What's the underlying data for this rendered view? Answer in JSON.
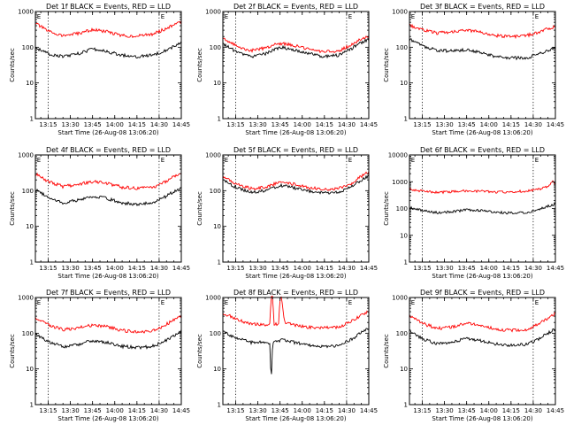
{
  "figure": {
    "start_time_label": "Start Time (26-Aug-08 13:06:20)",
    "ylabel": "Counts/sec",
    "marker_label": "E",
    "colors": {
      "events": "#000000",
      "lld": "#ff0000"
    }
  },
  "chart_data": [
    {
      "type": "line",
      "title": "Det 1f BLACK = Events, RED = LLD",
      "x_tick_labels": [
        "13:15",
        "13:30",
        "13:45",
        "14:00",
        "14:15",
        "14:30",
        "14:45"
      ],
      "x_range": [
        "13:06:20",
        "14:45"
      ],
      "y_scale": "log",
      "ylim": [
        1,
        1000
      ],
      "y_tick_labels": [
        "1",
        "10",
        "100",
        "1000"
      ],
      "vertical_lines": [
        "13:15",
        "14:30"
      ],
      "series": [
        {
          "name": "LLD",
          "color": "#ff0000",
          "x": [
            "13:06",
            "13:15",
            "13:25",
            "13:35",
            "13:45",
            "13:55",
            "14:05",
            "14:15",
            "14:25",
            "14:32",
            "14:40",
            "14:45"
          ],
          "values": [
            480,
            280,
            210,
            240,
            310,
            270,
            210,
            205,
            230,
            300,
            420,
            520
          ]
        },
        {
          "name": "Events",
          "color": "#000000",
          "x": [
            "13:06",
            "13:15",
            "13:25",
            "13:35",
            "13:45",
            "13:55",
            "14:05",
            "14:15",
            "14:25",
            "14:32",
            "14:40",
            "14:45"
          ],
          "values": [
            100,
            65,
            55,
            65,
            90,
            75,
            60,
            55,
            60,
            75,
            105,
            135
          ]
        }
      ]
    },
    {
      "type": "line",
      "title": "Det 2f BLACK = Events, RED = LLD",
      "x_tick_labels": [
        "13:15",
        "13:30",
        "13:45",
        "14:00",
        "14:15",
        "14:30",
        "14:45"
      ],
      "x_range": [
        "13:06:20",
        "14:45"
      ],
      "y_scale": "log",
      "ylim": [
        1,
        1000
      ],
      "y_tick_labels": [
        "1",
        "10",
        "100",
        "1000"
      ],
      "vertical_lines": [
        "13:15",
        "14:30"
      ],
      "series": [
        {
          "name": "LLD",
          "color": "#ff0000",
          "x": [
            "13:06",
            "13:15",
            "13:25",
            "13:35",
            "13:45",
            "13:55",
            "14:05",
            "14:15",
            "14:25",
            "14:32",
            "14:40",
            "14:45"
          ],
          "values": [
            180,
            110,
            80,
            95,
            130,
            110,
            85,
            75,
            80,
            110,
            170,
            210
          ]
        },
        {
          "name": "Events",
          "color": "#000000",
          "x": [
            "13:06",
            "13:15",
            "13:25",
            "13:35",
            "13:45",
            "13:55",
            "14:05",
            "14:15",
            "14:25",
            "14:32",
            "14:40",
            "14:45"
          ],
          "values": [
            130,
            75,
            55,
            65,
            100,
            85,
            65,
            55,
            60,
            85,
            135,
            165
          ]
        }
      ]
    },
    {
      "type": "line",
      "title": "Det 3f BLACK = Events, RED = LLD",
      "x_tick_labels": [
        "13:15",
        "13:30",
        "13:45",
        "14:00",
        "14:15",
        "14:30",
        "14:45"
      ],
      "x_range": [
        "13:06:20",
        "14:45"
      ],
      "y_scale": "log",
      "ylim": [
        1,
        1000
      ],
      "y_tick_labels": [
        "1",
        "10",
        "100",
        "1000"
      ],
      "vertical_lines": [
        "13:15",
        "14:30"
      ],
      "series": [
        {
          "name": "LLD",
          "color": "#ff0000",
          "x": [
            "13:06",
            "13:15",
            "13:25",
            "13:35",
            "13:45",
            "13:55",
            "14:05",
            "14:15",
            "14:25",
            "14:32",
            "14:40",
            "14:45"
          ],
          "values": [
            420,
            310,
            250,
            270,
            300,
            260,
            210,
            200,
            210,
            250,
            330,
            380
          ]
        },
        {
          "name": "Events",
          "color": "#000000",
          "x": [
            "13:06",
            "13:15",
            "13:25",
            "13:35",
            "13:45",
            "13:55",
            "14:05",
            "14:15",
            "14:25",
            "14:32",
            "14:40",
            "14:45"
          ],
          "values": [
            170,
            110,
            80,
            80,
            85,
            70,
            55,
            50,
            50,
            60,
            80,
            100
          ]
        }
      ]
    },
    {
      "type": "line",
      "title": "Det 4f BLACK = Events, RED = LLD",
      "x_tick_labels": [
        "13:15",
        "13:30",
        "13:45",
        "14:00",
        "14:15",
        "14:30",
        "14:45"
      ],
      "x_range": [
        "13:06:20",
        "14:45"
      ],
      "y_scale": "log",
      "ylim": [
        1,
        1000
      ],
      "y_tick_labels": [
        "1",
        "10",
        "100",
        "1000"
      ],
      "vertical_lines": [
        "13:15",
        "14:30"
      ],
      "series": [
        {
          "name": "LLD",
          "color": "#ff0000",
          "x": [
            "13:06",
            "13:15",
            "13:25",
            "13:35",
            "13:45",
            "13:55",
            "14:05",
            "14:15",
            "14:25",
            "14:32",
            "14:40",
            "14:45"
          ],
          "values": [
            300,
            180,
            130,
            150,
            180,
            160,
            125,
            115,
            120,
            155,
            250,
            330
          ]
        },
        {
          "name": "Events",
          "color": "#000000",
          "x": [
            "13:06",
            "13:15",
            "13:25",
            "13:35",
            "13:45",
            "13:55",
            "14:05",
            "14:15",
            "14:25",
            "14:32",
            "14:40",
            "14:45"
          ],
          "values": [
            110,
            65,
            45,
            55,
            70,
            60,
            45,
            42,
            45,
            60,
            95,
            125
          ]
        }
      ]
    },
    {
      "type": "line",
      "title": "Det 5f BLACK = Events, RED = LLD",
      "x_tick_labels": [
        "13:15",
        "13:30",
        "13:45",
        "14:00",
        "14:15",
        "14:30",
        "14:45"
      ],
      "x_range": [
        "13:06:20",
        "14:45"
      ],
      "y_scale": "log",
      "ylim": [
        1,
        1000
      ],
      "y_tick_labels": [
        "1",
        "10",
        "100",
        "1000"
      ],
      "vertical_lines": [
        "13:15",
        "14:30"
      ],
      "series": [
        {
          "name": "LLD",
          "color": "#ff0000",
          "x": [
            "13:06",
            "13:15",
            "13:25",
            "13:35",
            "13:45",
            "13:55",
            "14:05",
            "14:15",
            "14:25",
            "14:32",
            "14:40",
            "14:45"
          ],
          "values": [
            260,
            160,
            115,
            125,
            175,
            150,
            120,
            110,
            115,
            150,
            250,
            330
          ]
        },
        {
          "name": "Events",
          "color": "#000000",
          "x": [
            "13:06",
            "13:15",
            "13:25",
            "13:35",
            "13:45",
            "13:55",
            "14:05",
            "14:15",
            "14:25",
            "14:32",
            "14:40",
            "14:45"
          ],
          "values": [
            210,
            125,
            90,
            100,
            140,
            120,
            95,
            85,
            90,
            120,
            195,
            260
          ]
        }
      ]
    },
    {
      "type": "line",
      "title": "Det 6f BLACK = Events, RED = LLD",
      "x_tick_labels": [
        "13:15",
        "13:30",
        "13:45",
        "14:00",
        "14:15",
        "14:30",
        "14:45"
      ],
      "x_range": [
        "13:06:20",
        "14:45"
      ],
      "y_scale": "log",
      "ylim": [
        1,
        10000
      ],
      "y_tick_labels": [
        "1",
        "10",
        "100",
        "1000",
        "10000"
      ],
      "vertical_lines": [
        "13:15",
        "14:30"
      ],
      "series": [
        {
          "name": "LLD",
          "color": "#ff0000",
          "x": [
            "13:06",
            "13:15",
            "13:25",
            "13:35",
            "13:45",
            "13:55",
            "14:05",
            "14:15",
            "14:25",
            "14:32",
            "14:40",
            "14:43",
            "14:45"
          ],
          "values": [
            520,
            450,
            400,
            420,
            460,
            440,
            410,
            420,
            450,
            500,
            650,
            1100,
            700
          ]
        },
        {
          "name": "Events",
          "color": "#000000",
          "x": [
            "13:06",
            "13:15",
            "13:25",
            "13:35",
            "13:45",
            "13:55",
            "14:05",
            "14:15",
            "14:25",
            "14:32",
            "14:40",
            "14:45"
          ],
          "values": [
            110,
            85,
            70,
            75,
            90,
            85,
            72,
            68,
            70,
            85,
            120,
            150
          ]
        }
      ]
    },
    {
      "type": "line",
      "title": "Det 7f BLACK = Events, RED = LLD",
      "x_tick_labels": [
        "13:15",
        "13:30",
        "13:45",
        "14:00",
        "14:15",
        "14:30",
        "14:45"
      ],
      "x_range": [
        "13:06:20",
        "14:45"
      ],
      "y_scale": "log",
      "ylim": [
        1,
        1000
      ],
      "y_tick_labels": [
        "1",
        "10",
        "100",
        "1000"
      ],
      "vertical_lines": [
        "13:15",
        "14:30"
      ],
      "series": [
        {
          "name": "LLD",
          "color": "#ff0000",
          "x": [
            "13:06",
            "13:15",
            "13:25",
            "13:35",
            "13:45",
            "13:55",
            "14:05",
            "14:15",
            "14:25",
            "14:32",
            "14:40",
            "14:45"
          ],
          "values": [
            280,
            170,
            125,
            140,
            170,
            150,
            120,
            110,
            115,
            150,
            240,
            320
          ]
        },
        {
          "name": "Events",
          "color": "#000000",
          "x": [
            "13:06",
            "13:15",
            "13:25",
            "13:35",
            "13:45",
            "13:55",
            "14:05",
            "14:15",
            "14:25",
            "14:32",
            "14:40",
            "14:45"
          ],
          "values": [
            100,
            58,
            42,
            48,
            62,
            55,
            43,
            40,
            42,
            55,
            85,
            115
          ]
        }
      ]
    },
    {
      "type": "line",
      "title": "Det 8f BLACK = Events, RED = LLD",
      "x_tick_labels": [
        "13:15",
        "13:30",
        "13:45",
        "14:00",
        "14:15",
        "14:30",
        "14:45"
      ],
      "x_range": [
        "13:06:20",
        "14:45"
      ],
      "y_scale": "log",
      "ylim": [
        1,
        1000
      ],
      "y_tick_labels": [
        "1",
        "10",
        "100",
        "1000"
      ],
      "vertical_lines": [
        "13:15",
        "14:30"
      ],
      "series": [
        {
          "name": "LLD",
          "color": "#ff0000",
          "x": [
            "13:06",
            "13:15",
            "13:25",
            "13:35",
            "13:38",
            "13:39",
            "13:40",
            "13:41",
            "13:44",
            "13:45",
            "13:46",
            "13:48",
            "13:55",
            "14:05",
            "14:15",
            "14:25",
            "14:32",
            "14:40",
            "14:45"
          ],
          "values": [
            380,
            250,
            180,
            175,
            180,
            1000,
            1000,
            180,
            185,
            1000,
            1000,
            200,
            170,
            145,
            140,
            150,
            200,
            320,
            420
          ]
        },
        {
          "name": "Events",
          "color": "#000000",
          "x": [
            "13:06",
            "13:15",
            "13:25",
            "13:35",
            "13:38",
            "13:39",
            "13:40",
            "13:41",
            "13:48",
            "13:55",
            "14:05",
            "14:15",
            "14:25",
            "14:32",
            "14:40",
            "14:45"
          ],
          "values": [
            110,
            75,
            55,
            55,
            55,
            4,
            55,
            60,
            65,
            55,
            45,
            42,
            45,
            62,
            105,
            140
          ]
        }
      ]
    },
    {
      "type": "line",
      "title": "Det 9f BLACK = Events, RED = LLD",
      "x_tick_labels": [
        "13:15",
        "13:30",
        "13:45",
        "14:00",
        "14:15",
        "14:30",
        "14:45"
      ],
      "x_range": [
        "13:06:20",
        "14:45"
      ],
      "y_scale": "log",
      "ylim": [
        1,
        1000
      ],
      "y_tick_labels": [
        "1",
        "10",
        "100",
        "1000"
      ],
      "vertical_lines": [
        "13:15",
        "14:30"
      ],
      "series": [
        {
          "name": "LLD",
          "color": "#ff0000",
          "x": [
            "13:06",
            "13:15",
            "13:25",
            "13:35",
            "13:45",
            "13:55",
            "14:05",
            "14:15",
            "14:25",
            "14:32",
            "14:40",
            "14:45"
          ],
          "values": [
            320,
            190,
            135,
            150,
            190,
            165,
            130,
            120,
            125,
            165,
            270,
            360
          ]
        },
        {
          "name": "Events",
          "color": "#000000",
          "x": [
            "13:06",
            "13:15",
            "13:25",
            "13:35",
            "13:45",
            "13:55",
            "14:05",
            "14:15",
            "14:25",
            "14:32",
            "14:40",
            "14:45"
          ],
          "values": [
            120,
            70,
            50,
            55,
            72,
            62,
            50,
            46,
            48,
            63,
            100,
            135
          ]
        }
      ]
    }
  ]
}
